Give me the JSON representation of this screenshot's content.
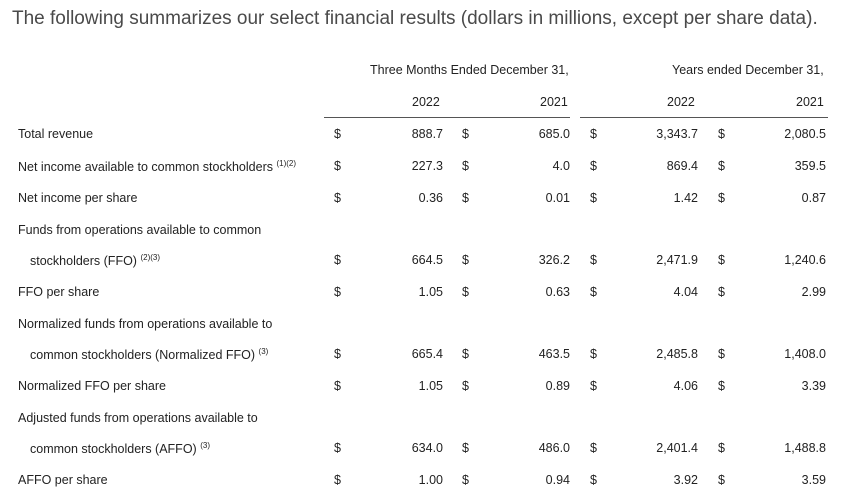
{
  "intro": "The following summarizes our select financial results (dollars in millions, except per share data).",
  "headers": {
    "three_months": "Three Months Ended December 31,",
    "years": "Years ended December 31,",
    "col_2022_q": "2022",
    "col_2021_q": "2021",
    "col_2022_y": "2022",
    "col_2021_y": "2021"
  },
  "currency": "$",
  "rows": [
    {
      "label_lines": [
        "Total revenue"
      ],
      "sup": "",
      "values": [
        "888.7",
        "685.0",
        "3,343.7",
        "2,080.5"
      ]
    },
    {
      "label_lines": [
        "Net income available to common stockholders"
      ],
      "sup": "(1)(2)",
      "values": [
        "227.3",
        "4.0",
        "869.4",
        "359.5"
      ]
    },
    {
      "label_lines": [
        "Net income per share"
      ],
      "sup": "",
      "values": [
        "0.36",
        "0.01",
        "1.42",
        "0.87"
      ]
    },
    {
      "label_lines": [
        "Funds from operations available to common",
        "stockholders (FFO)"
      ],
      "sup": "(2)(3)",
      "values": [
        "664.5",
        "326.2",
        "2,471.9",
        "1,240.6"
      ]
    },
    {
      "label_lines": [
        "FFO per share"
      ],
      "sup": "",
      "values": [
        "1.05",
        "0.63",
        "4.04",
        "2.99"
      ]
    },
    {
      "label_lines": [
        "Normalized funds from operations available to",
        "common stockholders (Normalized FFO)"
      ],
      "sup": "(3)",
      "values": [
        "665.4",
        "463.5",
        "2,485.8",
        "1,408.0"
      ]
    },
    {
      "label_lines": [
        "Normalized FFO per share"
      ],
      "sup": "",
      "values": [
        "1.05",
        "0.89",
        "4.06",
        "3.39"
      ]
    },
    {
      "label_lines": [
        "Adjusted funds from operations available to",
        "common stockholders (AFFO)"
      ],
      "sup": "(3)",
      "values": [
        "634.0",
        "486.0",
        "2,401.4",
        "1,488.8"
      ]
    },
    {
      "label_lines": [
        "AFFO per share"
      ],
      "sup": "",
      "values": [
        "1.00",
        "0.94",
        "3.92",
        "3.59"
      ]
    }
  ]
}
